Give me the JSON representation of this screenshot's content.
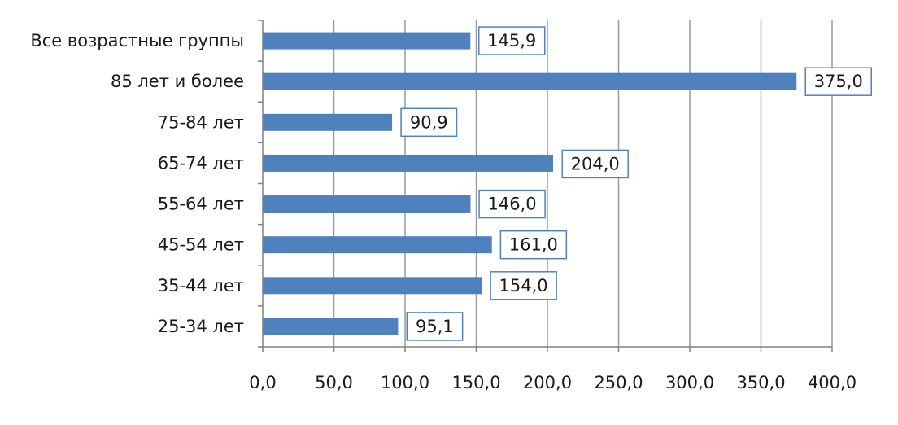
{
  "chart_data": {
    "type": "bar",
    "orientation": "horizontal",
    "title": "",
    "xlabel": "",
    "ylabel": "",
    "categories": [
      "Все возрастные группы",
      "85 лет и более",
      "75-84 лет",
      "65-74 лет",
      "55-64 лет",
      "45-54 лет",
      "35-44 лет",
      "25-34 лет"
    ],
    "values": [
      145.9,
      375.0,
      90.9,
      204.0,
      146.0,
      161.0,
      154.0,
      95.1
    ],
    "data_labels": [
      "145,9",
      "375,0",
      "90,9",
      "204,0",
      "146,0",
      "161,0",
      "154,0",
      "95,1"
    ],
    "xlim": [
      0,
      400
    ],
    "x_ticks": [
      0,
      50,
      100,
      150,
      200,
      250,
      300,
      350,
      400
    ],
    "x_tick_labels": [
      "0,0",
      "50,0",
      "100,0",
      "150,0",
      "200,0",
      "250,0",
      "300,0",
      "350,0",
      "400,0"
    ],
    "grid": "vertical",
    "legend": "none",
    "colors": {
      "bar": "#4f81bd",
      "label_border": "#4f81bd",
      "grid": "#9a9a9a",
      "axis": "#808080",
      "text": "#1a1a1a"
    }
  }
}
